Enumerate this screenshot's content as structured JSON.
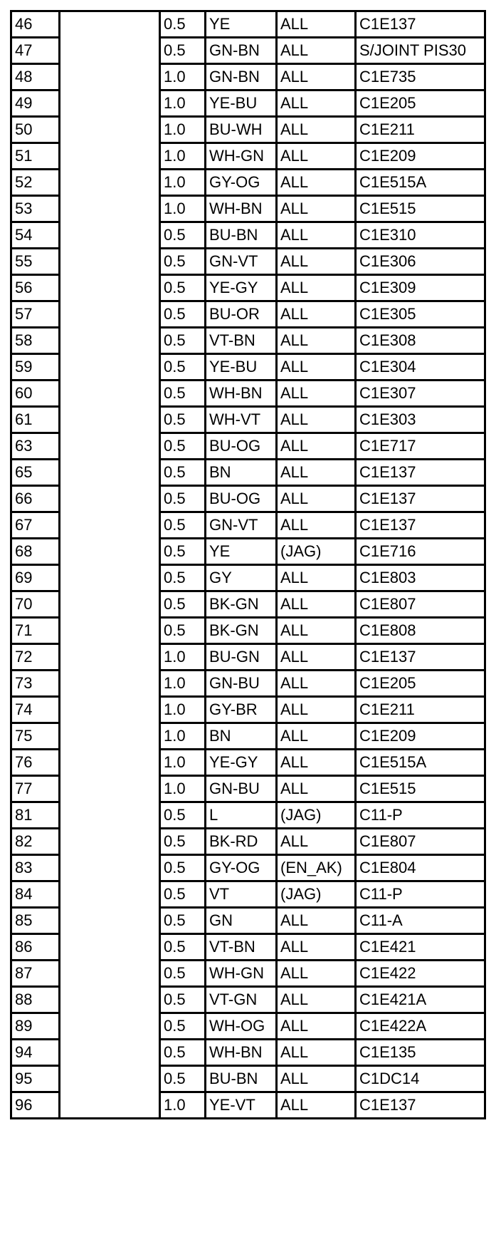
{
  "table": {
    "rows": [
      [
        "46",
        "",
        "0.5",
        "YE",
        "ALL",
        "C1E137"
      ],
      [
        "47",
        "",
        "0.5",
        "GN-BN",
        "ALL",
        "S/JOINT PIS30"
      ],
      [
        "48",
        "",
        "1.0",
        "GN-BN",
        "ALL",
        "C1E735"
      ],
      [
        "49",
        "",
        "1.0",
        "YE-BU",
        "ALL",
        "C1E205"
      ],
      [
        "50",
        "",
        "1.0",
        "BU-WH",
        "ALL",
        "C1E211"
      ],
      [
        "51",
        "",
        "1.0",
        "WH-GN",
        "ALL",
        "C1E209"
      ],
      [
        "52",
        "",
        "1.0",
        "GY-OG",
        "ALL",
        "C1E515A"
      ],
      [
        "53",
        "",
        "1.0",
        "WH-BN",
        "ALL",
        "C1E515"
      ],
      [
        "54",
        "",
        "0.5",
        "BU-BN",
        "ALL",
        "C1E310"
      ],
      [
        "55",
        "",
        "0.5",
        "GN-VT",
        "ALL",
        "C1E306"
      ],
      [
        "56",
        "",
        "0.5",
        "YE-GY",
        "ALL",
        "C1E309"
      ],
      [
        "57",
        "",
        "0.5",
        "BU-OR",
        "ALL",
        "C1E305"
      ],
      [
        "58",
        "",
        "0.5",
        "VT-BN",
        "ALL",
        "C1E308"
      ],
      [
        "59",
        "",
        "0.5",
        "YE-BU",
        "ALL",
        "C1E304"
      ],
      [
        "60",
        "",
        "0.5",
        "WH-BN",
        "ALL",
        "C1E307"
      ],
      [
        "61",
        "",
        "0.5",
        "WH-VT",
        "ALL",
        "C1E303"
      ],
      [
        "63",
        "",
        "0.5",
        "BU-OG",
        "ALL",
        "C1E717"
      ],
      [
        "65",
        "",
        "0.5",
        "BN",
        "ALL",
        "C1E137"
      ],
      [
        "66",
        "",
        "0.5",
        "BU-OG",
        "ALL",
        "C1E137"
      ],
      [
        "67",
        "",
        "0.5",
        "GN-VT",
        "ALL",
        "C1E137"
      ],
      [
        "68",
        "",
        "0.5",
        "YE",
        "(JAG)",
        "C1E716"
      ],
      [
        "69",
        "",
        "0.5",
        "GY",
        "ALL",
        "C1E803"
      ],
      [
        "70",
        "",
        "0.5",
        "BK-GN",
        "ALL",
        "C1E807"
      ],
      [
        "71",
        "",
        "0.5",
        "BK-GN",
        "ALL",
        "C1E808"
      ],
      [
        "72",
        "",
        "1.0",
        "BU-GN",
        "ALL",
        "C1E137"
      ],
      [
        "73",
        "",
        "1.0",
        "GN-BU",
        "ALL",
        "C1E205"
      ],
      [
        "74",
        "",
        "1.0",
        "GY-BR",
        "ALL",
        "C1E211"
      ],
      [
        "75",
        "",
        "1.0",
        "BN",
        "ALL",
        "C1E209"
      ],
      [
        "76",
        "",
        "1.0",
        "YE-GY",
        "ALL",
        "C1E515A"
      ],
      [
        "77",
        "",
        "1.0",
        "GN-BU",
        "ALL",
        "C1E515"
      ],
      [
        "81",
        "",
        "0.5",
        "L",
        "(JAG)",
        "C11-P"
      ],
      [
        "82",
        "",
        "0.5",
        "BK-RD",
        "ALL",
        "C1E807"
      ],
      [
        "83",
        "",
        "0.5",
        "GY-OG",
        "(EN_AK)",
        "C1E804"
      ],
      [
        "84",
        "",
        "0.5",
        "VT",
        "(JAG)",
        "C11-P"
      ],
      [
        "85",
        "",
        "0.5",
        "GN",
        "ALL",
        "C11-A"
      ],
      [
        "86",
        "",
        "0.5",
        "VT-BN",
        "ALL",
        "C1E421"
      ],
      [
        "87",
        "",
        "0.5",
        "WH-GN",
        "ALL",
        "C1E422"
      ],
      [
        "88",
        "",
        "0.5",
        "VT-GN",
        "ALL",
        "C1E421A"
      ],
      [
        "89",
        "",
        "0.5",
        "WH-OG",
        "ALL",
        "C1E422A"
      ],
      [
        "94",
        "",
        "0.5",
        "WH-BN",
        "ALL",
        "C1E135"
      ],
      [
        "95",
        "",
        "0.5",
        "BU-BN",
        "ALL",
        "C1DC14"
      ],
      [
        "96",
        "",
        "1.0",
        "YE-VT",
        "ALL",
        "C1E137"
      ]
    ]
  }
}
